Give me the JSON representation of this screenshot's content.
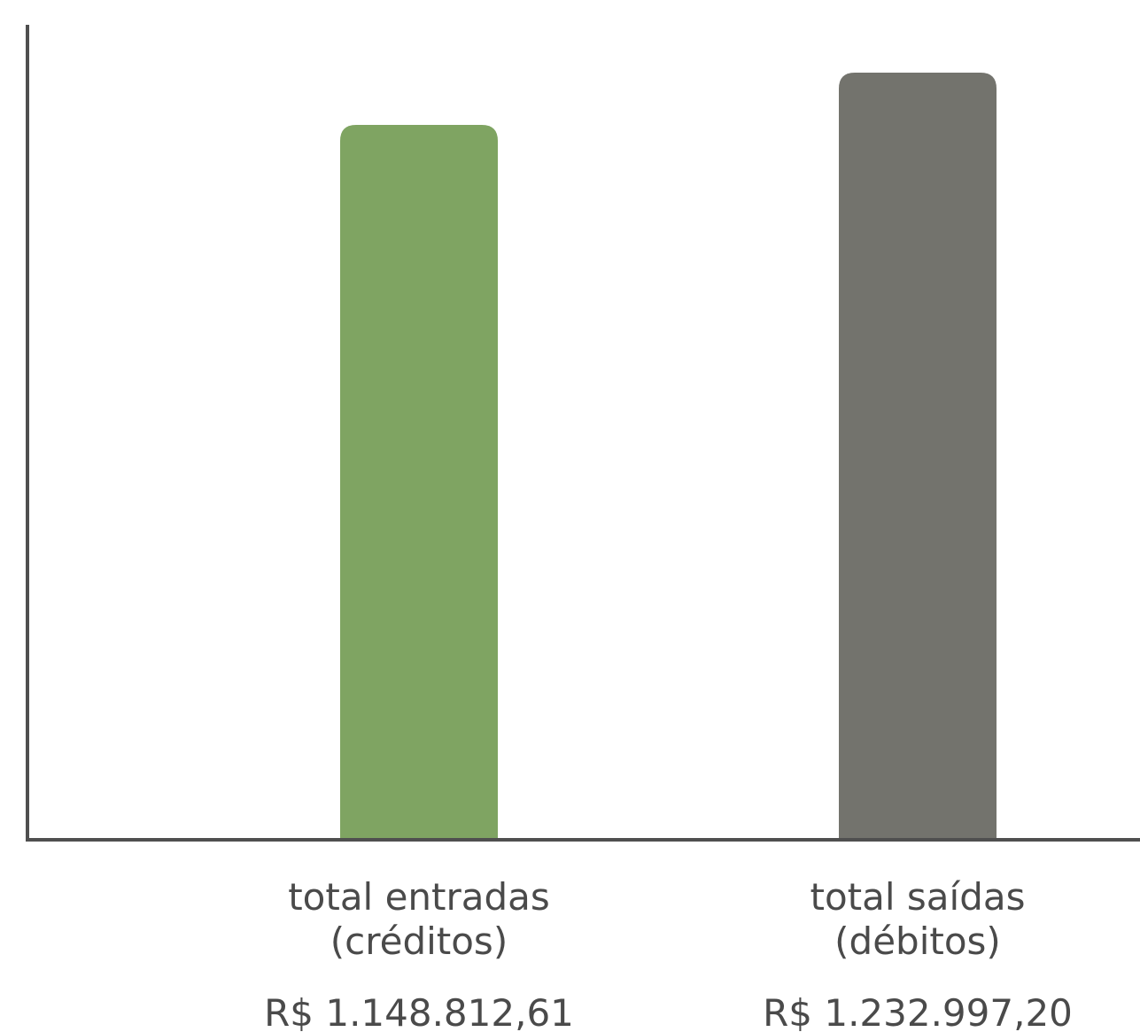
{
  "chart_data": {
    "type": "bar",
    "categories": [
      [
        "total entradas",
        "(créditos)"
      ],
      [
        "total saídas",
        "(débitos)"
      ]
    ],
    "values": [
      1148812.61,
      1232997.2
    ],
    "value_labels": [
      "R$ 1.148.812,61",
      "R$ 1.232.997,20"
    ],
    "colors": [
      "#7fa462",
      "#73736d"
    ],
    "axis_color": "#4f4f4f",
    "title": "",
    "xlabel": "",
    "ylabel": "",
    "ylim": [
      0,
      1350000
    ],
    "grid": false,
    "legend": "none"
  }
}
